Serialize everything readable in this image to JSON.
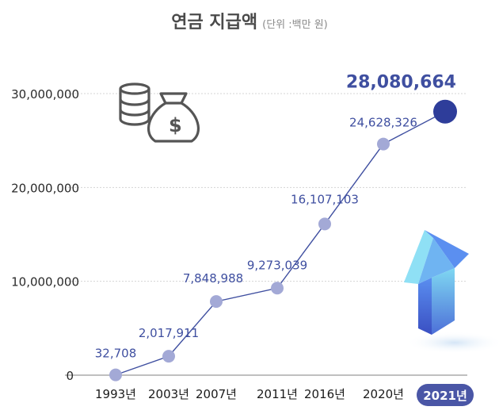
{
  "chart_data": {
    "type": "line",
    "title": "연금 지급액",
    "subtitle": "(단위 :백만 원)",
    "categories": [
      "1993년",
      "2003년",
      "2007년",
      "2011년",
      "2016년",
      "2020년",
      "2021년"
    ],
    "values": [
      32708,
      2017911,
      7848988,
      9273039,
      16107103,
      24628326,
      28080664
    ],
    "data_labels": [
      "32,708",
      "2,017,911",
      "7,848,988",
      "9,273,039",
      "16,107,103",
      "24,628,326",
      "28,080,664"
    ],
    "y_ticks": [
      {
        "value": 0,
        "label": "0"
      },
      {
        "value": 10000000,
        "label": "10,000,000"
      },
      {
        "value": 20000000,
        "label": "20,000,000"
      },
      {
        "value": 30000000,
        "label": "30,000,000"
      }
    ],
    "ylim": [
      0,
      30000000
    ],
    "grid": true,
    "highlight_index": 6,
    "colors": {
      "line": "#3f4fa0",
      "marker": "#a3a9d6",
      "highlight_marker": "#2e3d9a",
      "label": "#3f4fa0",
      "highlight_badge": "#4a56a6",
      "grid": "#d4d4d4"
    },
    "icons": [
      "coin-stack-icon",
      "money-bag-icon",
      "up-arrow-icon"
    ]
  }
}
